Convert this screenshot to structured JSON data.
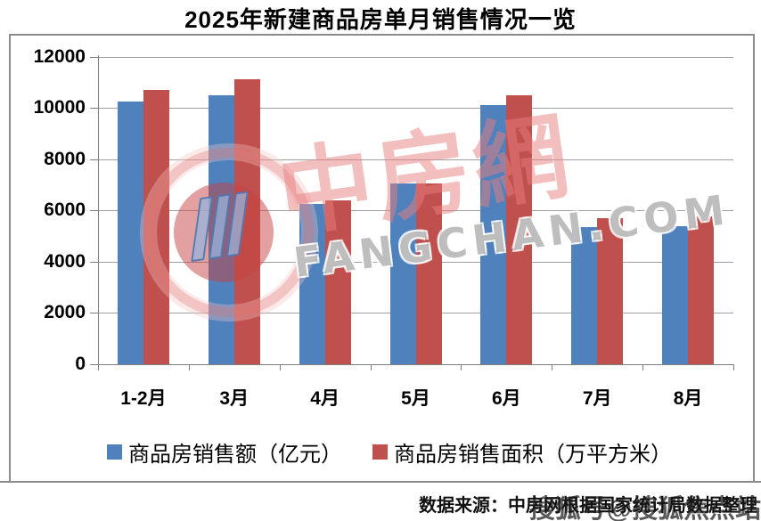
{
  "title": "2025年新建商品房单月销售情况一览",
  "source_note": "数据来源：中房网根据国家统计局数据整理",
  "overlay_watermark": "搜狐号@搜狐焦点站",
  "watermark": {
    "cn": "中房網",
    "en": "FANGCHAN.COM"
  },
  "colors": {
    "amount_blue": "#4F81BD",
    "area_red": "#C0504D",
    "gridline": "#a0a0a0",
    "axis": "#7f7f7f",
    "frame": "#8c8c8c"
  },
  "legend": [
    {
      "label": "商品房销售额（亿元）",
      "color": "#4F81BD"
    },
    {
      "label": "商品房销售面积（万平方米）",
      "color": "#C0504D"
    }
  ],
  "chart_data": {
    "type": "bar",
    "title": "2025年新建商品房单月销售情况一览",
    "categories": [
      "1-2月",
      "3月",
      "4月",
      "5月",
      "6月",
      "7月",
      "8月"
    ],
    "series": [
      {
        "name": "商品房销售额（亿元）",
        "color": "#4F81BD",
        "values": [
          10250,
          10500,
          6250,
          7050,
          10100,
          5350,
          5400
        ]
      },
      {
        "name": "商品房销售面积（万平方米）",
        "color": "#C0504D",
        "values": [
          10700,
          11100,
          6400,
          7050,
          10500,
          5700,
          5750
        ]
      }
    ],
    "xlabel": "",
    "ylabel": "",
    "ylim": [
      0,
      12000
    ],
    "ytick_step": 2000,
    "grid": true,
    "legend_position": "bottom"
  }
}
